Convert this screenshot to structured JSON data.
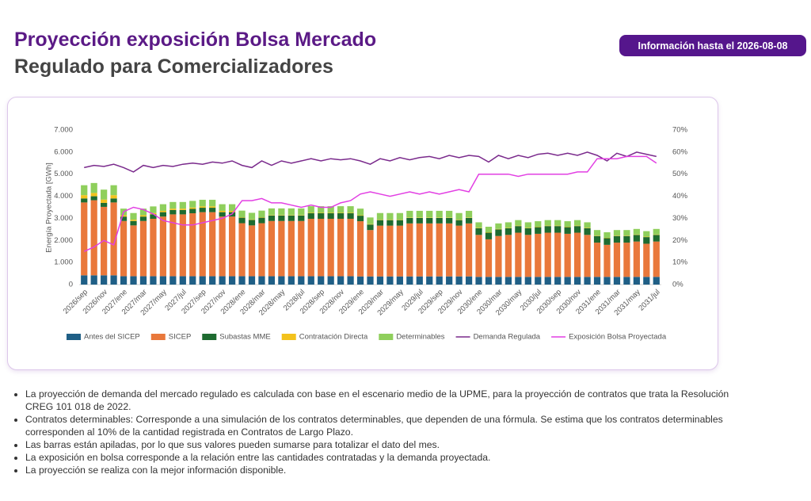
{
  "header": {
    "title": "Proyección exposición Bolsa Mercado",
    "subtitle": "Regulado para Comercializadores",
    "badge": "Información hasta el 2026-08-08"
  },
  "chart_data": {
    "type": "bar",
    "stacked": true,
    "ylabel": "Energía Proyectada [GWh]",
    "categories": [
      "2026/sep",
      null,
      "2026/nov",
      null,
      "2027/ene",
      null,
      "2027/mar",
      null,
      "2027/may",
      null,
      "2027/jul",
      null,
      "2027/sep",
      null,
      "2027/nov",
      null,
      "2028/ene",
      null,
      "2028/mar",
      null,
      "2028/may",
      null,
      "2028/jul",
      null,
      "2028/sep",
      null,
      "2028/nov",
      null,
      "2029/ene",
      null,
      "2029/mar",
      null,
      "2029/may",
      null,
      "2029/jul",
      null,
      "2029/sep",
      null,
      "2029/nov",
      null,
      "2030/ene",
      null,
      "2030/mar",
      null,
      "2030/may",
      null,
      "2030/jul",
      null,
      "2030/sep",
      null,
      "2030/nov",
      null,
      "2031/ene",
      null,
      "2031/mar",
      null,
      "2031/may",
      null,
      "2031/jul"
    ],
    "ylim": [
      0,
      7000
    ],
    "yticks": [
      0,
      {
        "value": 1000,
        "label": "1.000"
      },
      {
        "value": 2000,
        "label": "2.000"
      },
      {
        "value": 3000,
        "label": "3.000"
      },
      {
        "value": 4000,
        "label": "4.000"
      },
      {
        "value": 5000,
        "label": "5.000"
      },
      {
        "value": 6000,
        "label": "6.000"
      },
      {
        "value": 7000,
        "label": "7.000"
      }
    ],
    "y2lim": [
      0,
      70
    ],
    "y2ticks": [
      {
        "value": 0,
        "label": "0%"
      },
      {
        "value": 10,
        "label": "10%"
      },
      {
        "value": 20,
        "label": "20%"
      },
      {
        "value": 30,
        "label": "30%"
      },
      {
        "value": 40,
        "label": "40%"
      },
      {
        "value": 50,
        "label": "50%"
      },
      {
        "value": 60,
        "label": "60%"
      },
      {
        "value": 70,
        "label": "70%"
      }
    ],
    "legend": "bottom",
    "series": [
      {
        "name": "Antes del SICEP",
        "color": "#1f5f86",
        "values": [
          420,
          420,
          420,
          420,
          380,
          380,
          380,
          380,
          380,
          380,
          380,
          380,
          380,
          380,
          380,
          380,
          380,
          380,
          380,
          380,
          380,
          380,
          380,
          380,
          380,
          380,
          380,
          380,
          370,
          370,
          370,
          370,
          370,
          370,
          370,
          370,
          370,
          370,
          370,
          370,
          350,
          350,
          350,
          350,
          350,
          350,
          350,
          350,
          350,
          350,
          350,
          350,
          350,
          350,
          350,
          350,
          350,
          350,
          350
        ]
      },
      {
        "name": "SICEP",
        "color": "#e9783b",
        "values": [
          3300,
          3400,
          3100,
          3300,
          2500,
          2300,
          2500,
          2600,
          2700,
          2800,
          2800,
          2850,
          2900,
          2900,
          2700,
          2700,
          2400,
          2300,
          2400,
          2500,
          2500,
          2500,
          2500,
          2600,
          2600,
          2600,
          2600,
          2600,
          2500,
          2100,
          2300,
          2300,
          2300,
          2400,
          2400,
          2400,
          2400,
          2400,
          2300,
          2400,
          1900,
          1700,
          1850,
          1900,
          2000,
          1900,
          1950,
          2000,
          2000,
          1950,
          2000,
          1900,
          1550,
          1450,
          1550,
          1550,
          1600,
          1500,
          1600
        ]
      },
      {
        "name": "Subastas MME",
        "color": "#1e6b30",
        "values": [
          180,
          180,
          180,
          180,
          200,
          200,
          200,
          200,
          200,
          200,
          200,
          200,
          200,
          200,
          200,
          200,
          250,
          250,
          250,
          250,
          250,
          250,
          250,
          250,
          250,
          250,
          250,
          250,
          250,
          250,
          250,
          250,
          250,
          250,
          250,
          250,
          250,
          250,
          250,
          250,
          300,
          300,
          300,
          300,
          300,
          300,
          300,
          300,
          300,
          300,
          300,
          300,
          300,
          300,
          300,
          300,
          300,
          300,
          300
        ]
      },
      {
        "name": "Contratación Directa",
        "color": "#f3c21c",
        "values": [
          150,
          150,
          150,
          150,
          60,
          60,
          60,
          60,
          60,
          60,
          60,
          60,
          60,
          60,
          60,
          60,
          20,
          20,
          20,
          20,
          20,
          20,
          20,
          20,
          20,
          20,
          20,
          20,
          20,
          20,
          20,
          20,
          20,
          20,
          20,
          20,
          20,
          20,
          20,
          20,
          20,
          20,
          20,
          20,
          20,
          20,
          20,
          20,
          20,
          20,
          20,
          20,
          20,
          20,
          20,
          20,
          20,
          20,
          20
        ]
      },
      {
        "name": "Determinables",
        "color": "#8fcf5c",
        "values": [
          450,
          450,
          450,
          450,
          300,
          300,
          300,
          300,
          300,
          300,
          300,
          300,
          300,
          300,
          300,
          300,
          300,
          300,
          300,
          300,
          300,
          300,
          300,
          300,
          300,
          300,
          300,
          300,
          300,
          300,
          300,
          300,
          300,
          300,
          300,
          300,
          300,
          300,
          300,
          300,
          250,
          250,
          250,
          250,
          250,
          250,
          250,
          250,
          250,
          250,
          250,
          250,
          250,
          250,
          250,
          250,
          250,
          250,
          250
        ]
      },
      {
        "name": "Demanda Regulada",
        "color": "#7a2a8c",
        "type": "line",
        "values": [
          5300,
          5400,
          5350,
          5450,
          5300,
          5100,
          5400,
          5300,
          5400,
          5350,
          5450,
          5500,
          5450,
          5550,
          5500,
          5600,
          5400,
          5300,
          5600,
          5400,
          5600,
          5500,
          5600,
          5700,
          5600,
          5700,
          5650,
          5700,
          5600,
          5450,
          5700,
          5600,
          5750,
          5650,
          5750,
          5800,
          5700,
          5850,
          5750,
          5850,
          5800,
          5550,
          5850,
          5700,
          5850,
          5750,
          5900,
          5950,
          5850,
          5950,
          5850,
          6000,
          5850,
          5600,
          5950,
          5800,
          6000,
          5900,
          5800
        ]
      },
      {
        "name": "Exposición Bolsa Proyectada",
        "color": "#e23fe3",
        "type": "line",
        "axis": "y2",
        "values": [
          15,
          17,
          20,
          18,
          33,
          35,
          34,
          32,
          29,
          28,
          27,
          27,
          28,
          29,
          30,
          32,
          38,
          38,
          39,
          37,
          37,
          36,
          35,
          36,
          35,
          35,
          37,
          38,
          41,
          42,
          41,
          40,
          41,
          42,
          41,
          42,
          41,
          42,
          43,
          42,
          50,
          50,
          50,
          50,
          49,
          50,
          50,
          50,
          50,
          50,
          51,
          51,
          57,
          57,
          57,
          58,
          58,
          58,
          55
        ]
      }
    ]
  },
  "notes": [
    "La proyección de demanda del mercado regulado es calculada con base en el escenario medio de la UPME, para la proyección de contratos que trata la Resolución CREG 101 018 de 2022.",
    "Contratos determinables: Corresponde a una simulación de los contratos determinables, que dependen de una fórmula.  Se estima que los contratos determinables corresponden al 10% de la cantidad registrada en Contratos de Largo Plazo.",
    "Las barras están apiladas, por lo que sus valores pueden sumarse para totalizar el dato del mes.",
    "La exposición en bolsa corresponde a la relación entre las cantidades contratadas y la demanda proyectada.",
    "La proyección se realiza con la mejor información disponible."
  ]
}
